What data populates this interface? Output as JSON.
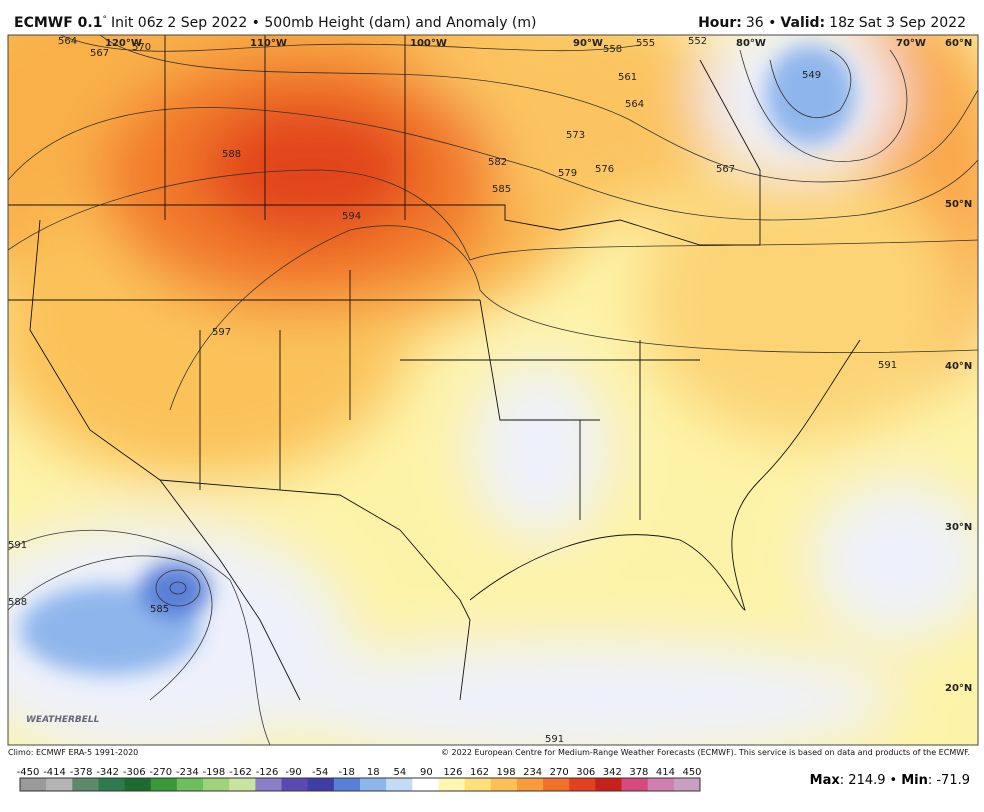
{
  "header": {
    "title_bold": "ECMWF 0.1",
    "title_degree": "°",
    "title_rest": "Init 06z 2 Sep 2022 • 500mb Height (dam) and Anomaly (m)",
    "hour_label": "Hour:",
    "hour_value": "36 •",
    "valid_label": "Valid:",
    "valid_value": "18z Sat 3 Sep 2022"
  },
  "map": {
    "longitudes": [
      "120°W",
      "110°W",
      "100°W",
      "90°W",
      "80°W",
      "70°W"
    ],
    "latitudes": [
      "60°N",
      "50°N",
      "40°N",
      "30°N",
      "20°N"
    ],
    "contour_labels": [
      "564",
      "567",
      "570",
      "588",
      "594",
      "597",
      "591",
      "585",
      "582",
      "579",
      "576",
      "573",
      "561",
      "558",
      "555",
      "552",
      "549",
      "567",
      "591",
      "588",
      "585",
      "564",
      "591"
    ],
    "logo": "WEATHERBELL"
  },
  "footer": {
    "climo": "Climo: ECMWF ERA-5 1991-2020",
    "copyright": "© 2022 European Centre for Medium-Range Weather Forecasts (ECMWF). This service is based on data and products of the ECMWF.",
    "max_label": "Max",
    "max_value": "214.9",
    "min_label": "Min",
    "min_value": "-71.9",
    "separator": "•"
  },
  "colorbar": {
    "ticks": [
      -450,
      -414,
      -378,
      -342,
      -306,
      -270,
      -234,
      -198,
      -162,
      -126,
      -90,
      -54,
      -18,
      18,
      54,
      90,
      126,
      162,
      198,
      234,
      270,
      306,
      342,
      378,
      414,
      450
    ],
    "colors": [
      "#9a9a9a",
      "#b4b4b4",
      "#5e8a6a",
      "#2f7a4a",
      "#1d6b30",
      "#3a9a3a",
      "#6cbf5a",
      "#9ed37a",
      "#c6e6a0",
      "#8a7fc6",
      "#5a4ab4",
      "#3e3ea8",
      "#5a7fd8",
      "#8fb6ec",
      "#c2dbf6",
      "#ffffff",
      "#fff6b0",
      "#fde07a",
      "#fcc057",
      "#f99a3c",
      "#f2702a",
      "#e2401e",
      "#c8201a",
      "#d64a7e",
      "#cf7fae",
      "#c8a0c6"
    ]
  }
}
